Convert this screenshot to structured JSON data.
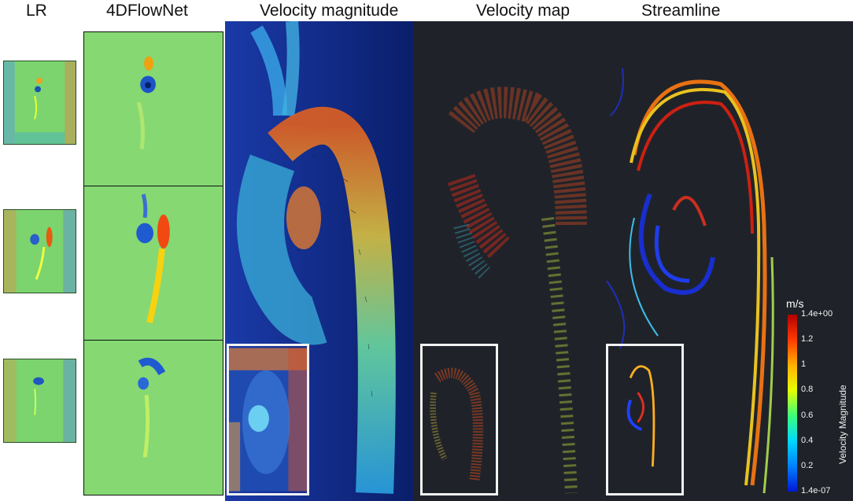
{
  "headers": {
    "lr": "LR",
    "fourd": "4DFlowNet",
    "magnitude": "Velocity magnitude",
    "vmap": "Velocity map",
    "stream": "Streamline"
  },
  "colorbar": {
    "unit": "m/s",
    "label": "Velocity Magnitude",
    "ticks": [
      "1.4e+00",
      "1.2",
      "1",
      "0.8",
      "0.6",
      "0.4",
      "0.2",
      "1.4e-07"
    ],
    "colors": [
      "#b40000",
      "#ff3a00",
      "#ffb000",
      "#e6ff00",
      "#3cff7a",
      "#00d8ff",
      "#0080ff",
      "#0018d8"
    ]
  }
}
